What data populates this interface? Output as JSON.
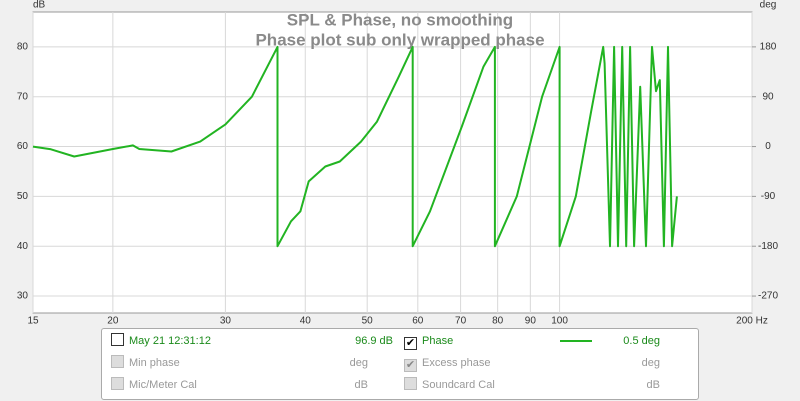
{
  "chart_data": {
    "type": "line",
    "title": "SPL & Phase, no smoothing",
    "subtitle": "Phase plot sub only wrapped phase",
    "y_label": "dB",
    "y2_label": "deg",
    "xscale": "log",
    "grid": true,
    "xlim": [
      15,
      200
    ],
    "xticks": [
      15,
      20,
      30,
      40,
      50,
      60,
      70,
      80,
      90,
      100,
      {
        "value": 200,
        "label": "200 Hz"
      }
    ],
    "ylim": [
      26.6,
      87
    ],
    "yticks": [
      30,
      40,
      50,
      60,
      70,
      80
    ],
    "y2lim": [
      -300.6,
      243
    ],
    "y2ticks": [
      -270,
      -180,
      -90,
      0,
      90,
      180
    ],
    "x": [
      15,
      16,
      17.4,
      20,
      21.5,
      22,
      24.7,
      27.4,
      30,
      33,
      36.2,
      36.2,
      38,
      39.3,
      40.5,
      43,
      45.3,
      48.9,
      51.8,
      56,
      58.9,
      58.9,
      62.7,
      70.3,
      76,
      79.2,
      79.2,
      85.7,
      93.9,
      100,
      100,
      106,
      112,
      117,
      117.6,
      119.9,
      121.7,
      123.4,
      125.3,
      127.1,
      128.9,
      130.8,
      133.7,
      136.5,
      139.5,
      141.5,
      143.5,
      145.6,
      147.8,
      150,
      152.6
    ],
    "series": [
      {
        "name": "Phase",
        "color": "#22b422",
        "axis": "y2",
        "values": [
          0,
          -5,
          -18,
          -4.5,
          2,
          -4.5,
          -9,
          9,
          40,
          90,
          180,
          -180,
          -135,
          -117,
          -63,
          -36,
          -27,
          9,
          45,
          126,
          180,
          -180,
          -117,
          36,
          144,
          180,
          -180,
          -90,
          90,
          180,
          -180,
          -90,
          63,
          180,
          150,
          -180,
          180,
          -180,
          180,
          -180,
          180,
          -180,
          108,
          -180,
          180,
          100,
          120,
          -180,
          180,
          -180,
          -90
        ]
      }
    ]
  },
  "panel": {
    "measurement": {
      "label": "May 21 12:31:12",
      "value": "96.9 dB",
      "checked": false
    },
    "phase": {
      "value": "0.5 deg",
      "checked": true
    },
    "rows": [
      {
        "label": "Min phase",
        "unit": "deg",
        "checked": false
      },
      {
        "label": "Excess phase",
        "unit": "deg",
        "checked": true
      },
      {
        "label": "Mic/Meter Cal",
        "unit": "dB",
        "checked": false
      },
      {
        "label": "Soundcard Cal",
        "unit": "dB",
        "checked": false
      }
    ]
  }
}
